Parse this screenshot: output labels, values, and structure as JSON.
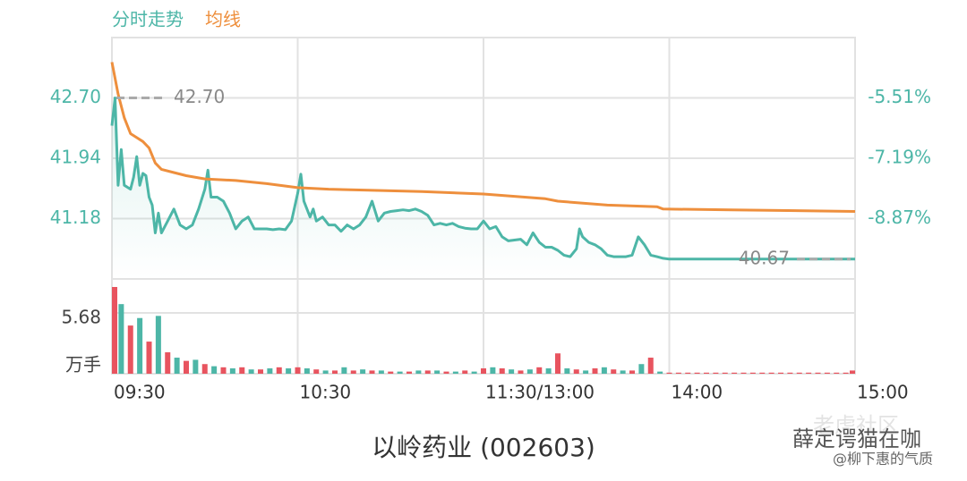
{
  "chart_data": [
    {
      "type": "line",
      "title": "以岭药业 (002603)",
      "xlim": [
        0,
        240
      ],
      "xticks": [
        {
          "value": 0,
          "label": "09:30"
        },
        {
          "value": 60,
          "label": "10:30"
        },
        {
          "value": 120,
          "label": "11:30/13:00"
        },
        {
          "value": 180,
          "label": "14:00"
        },
        {
          "value": 240,
          "label": "15:00"
        }
      ],
      "ylim": [
        40.42,
        43.46
      ],
      "yticks": [
        {
          "value": 42.7,
          "label": "42.70"
        },
        41.94,
        41.18
      ],
      "y2lim": [
        -10.55,
        -3.83
      ],
      "y2ticks": [
        {
          "value": -5.51,
          "label": "-5.51%"
        },
        {
          "value": -7.19,
          "label": "-7.19%"
        },
        {
          "value": -8.87,
          "label": "-8.87%"
        }
      ],
      "grid": true,
      "series": [
        {
          "name": "分时走势",
          "color": "#4db6a7",
          "area": true,
          "x": [
            0,
            1,
            2,
            3,
            4,
            6,
            7,
            8,
            9,
            10,
            11,
            12,
            13,
            14,
            15,
            16,
            18,
            20,
            22,
            24,
            26,
            28,
            30,
            31,
            32,
            34,
            36,
            38,
            40,
            42,
            44,
            46,
            48,
            50,
            52,
            54,
            56,
            58,
            60,
            61,
            62,
            64,
            65,
            66,
            68,
            70,
            72,
            74,
            76,
            78,
            80,
            82,
            84,
            86,
            88,
            90,
            92,
            94,
            96,
            98,
            100,
            102,
            104,
            106,
            108,
            110,
            112,
            114,
            116,
            118,
            120,
            122,
            124,
            126,
            128,
            130,
            132,
            134,
            136,
            138,
            140,
            142,
            144,
            146,
            148,
            150,
            151,
            152,
            154,
            156,
            158,
            160,
            162,
            164,
            166,
            168,
            170,
            172,
            174,
            176,
            178,
            180,
            190,
            200,
            210,
            220,
            230,
            240
          ],
          "values": [
            42.35,
            42.7,
            41.6,
            42.05,
            41.6,
            41.55,
            41.7,
            41.96,
            41.6,
            41.75,
            41.72,
            41.45,
            41.35,
            41.0,
            41.25,
            41.0,
            41.15,
            41.3,
            41.1,
            41.05,
            41.1,
            41.3,
            41.55,
            41.79,
            41.45,
            41.45,
            41.4,
            41.25,
            41.05,
            41.15,
            41.2,
            41.05,
            41.05,
            41.05,
            41.04,
            41.05,
            41.04,
            41.15,
            41.5,
            41.74,
            41.4,
            41.2,
            41.3,
            41.15,
            41.2,
            41.1,
            41.1,
            41.02,
            41.1,
            41.05,
            41.1,
            41.2,
            41.4,
            41.15,
            41.25,
            41.27,
            41.28,
            41.29,
            41.28,
            41.3,
            41.27,
            41.22,
            41.1,
            41.12,
            41.1,
            41.12,
            41.08,
            41.06,
            41.05,
            41.05,
            41.15,
            41.05,
            41.08,
            40.95,
            40.9,
            40.91,
            40.92,
            40.85,
            41.0,
            40.88,
            40.82,
            40.82,
            40.78,
            40.72,
            40.7,
            40.8,
            41.05,
            40.95,
            40.88,
            40.85,
            40.8,
            40.72,
            40.7,
            40.7,
            40.7,
            40.72,
            40.95,
            40.85,
            40.72,
            40.7,
            40.68,
            40.67,
            40.67,
            40.67,
            40.67,
            40.67,
            40.67,
            40.67
          ]
        },
        {
          "name": "均线",
          "color": "#ee8f3d",
          "x": [
            0,
            2,
            4,
            6,
            8,
            10,
            12,
            14,
            16,
            20,
            24,
            30,
            40,
            50,
            60,
            70,
            80,
            100,
            120,
            140,
            144,
            160,
            176,
            178,
            200,
            240
          ],
          "values": [
            43.15,
            42.75,
            42.45,
            42.25,
            42.2,
            42.15,
            42.07,
            41.88,
            41.8,
            41.76,
            41.72,
            41.68,
            41.66,
            41.62,
            41.57,
            41.55,
            41.54,
            41.52,
            41.49,
            41.43,
            41.4,
            41.35,
            41.33,
            41.3,
            41.29,
            41.27
          ]
        }
      ],
      "annotations": [
        {
          "text": "42.70",
          "value": 42.7
        },
        {
          "text": "40.67",
          "value": 40.67
        }
      ]
    },
    {
      "type": "bar",
      "unit_label": "万手",
      "xlim": [
        0,
        240
      ],
      "ylim": [
        0,
        8.35
      ],
      "yticks": [
        5.68
      ],
      "x": [
        0,
        3,
        6,
        9,
        12,
        15,
        18,
        21,
        24,
        27,
        30,
        33,
        36,
        39,
        42,
        45,
        48,
        51,
        54,
        57,
        60,
        63,
        66,
        69,
        72,
        75,
        78,
        81,
        84,
        87,
        90,
        93,
        96,
        99,
        102,
        105,
        108,
        111,
        114,
        117,
        120,
        123,
        126,
        129,
        132,
        135,
        138,
        141,
        144,
        147,
        150,
        153,
        156,
        159,
        162,
        165,
        168,
        171,
        174,
        177,
        180,
        183,
        186,
        189,
        192,
        195,
        198,
        201,
        204,
        207,
        210,
        213,
        216,
        219,
        222,
        225,
        228,
        231,
        234,
        237,
        240
      ],
      "values": [
        8.1,
        6.5,
        4.5,
        5.2,
        3.0,
        5.4,
        2.0,
        1.5,
        1.2,
        1.3,
        0.9,
        0.7,
        0.6,
        0.5,
        0.6,
        0.4,
        0.4,
        0.5,
        0.6,
        0.5,
        0.6,
        0.5,
        0.4,
        0.3,
        0.3,
        0.6,
        0.3,
        0.4,
        0.3,
        0.3,
        0.2,
        0.2,
        0.2,
        0.3,
        0.3,
        0.3,
        0.2,
        0.2,
        0.3,
        0.2,
        0.5,
        0.6,
        0.5,
        0.4,
        0.3,
        0.4,
        0.6,
        0.5,
        1.9,
        0.5,
        0.4,
        0.3,
        0.5,
        0.6,
        0.4,
        0.3,
        0.3,
        0.9,
        1.5,
        0.2,
        0.1,
        0.1,
        0.1,
        0.1,
        0.1,
        0.1,
        0.1,
        0.1,
        0.1,
        0.1,
        0.1,
        0.1,
        0.1,
        0.1,
        0.1,
        0.1,
        0.1,
        0.1,
        0.1,
        0.1,
        0.3
      ],
      "colors": [
        "#e8545f",
        "#4db6a7",
        "#e8545f",
        "#4db6a7",
        "#e8545f",
        "#4db6a7",
        "#e8545f",
        "#4db6a7",
        "#e8545f",
        "#4db6a7",
        "#e8545f",
        "#4db6a7",
        "#e8545f",
        "#4db6a7",
        "#e8545f",
        "#4db6a7",
        "#e8545f",
        "#4db6a7",
        "#e8545f",
        "#4db6a7",
        "#e8545f",
        "#4db6a7",
        "#e8545f",
        "#4db6a7",
        "#e8545f",
        "#4db6a7",
        "#e8545f",
        "#4db6a7",
        "#e8545f",
        "#4db6a7",
        "#e8545f",
        "#4db6a7",
        "#e8545f",
        "#4db6a7",
        "#e8545f",
        "#4db6a7",
        "#e8545f",
        "#4db6a7",
        "#e8545f",
        "#4db6a7",
        "#e8545f",
        "#4db6a7",
        "#e8545f",
        "#4db6a7",
        "#e8545f",
        "#4db6a7",
        "#e8545f",
        "#4db6a7",
        "#e8545f",
        "#4db6a7",
        "#e8545f",
        "#4db6a7",
        "#e8545f",
        "#4db6a7",
        "#e8545f",
        "#4db6a7",
        "#e8545f",
        "#4db6a7",
        "#e8545f",
        "#4db6a7",
        "#e8545f",
        "#e8545f",
        "#e8545f",
        "#e8545f",
        "#e8545f",
        "#e8545f",
        "#e8545f",
        "#e8545f",
        "#e8545f",
        "#e8545f",
        "#e8545f",
        "#e8545f",
        "#e8545f",
        "#e8545f",
        "#e8545f",
        "#e8545f",
        "#e8545f",
        "#e8545f",
        "#e8545f",
        "#e8545f",
        "#e8545f"
      ]
    }
  ],
  "watermark": [
    "老虎社区",
    "薛定谔猫在咖",
    "@柳下惠的气质"
  ]
}
